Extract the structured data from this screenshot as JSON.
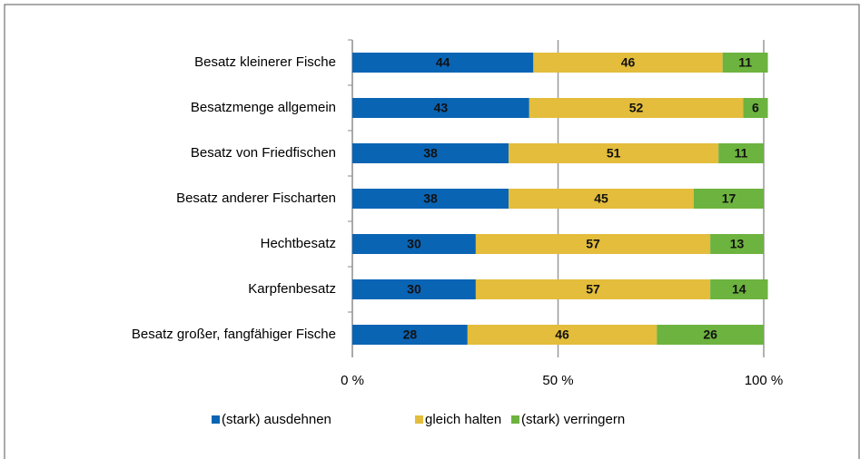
{
  "chart_data": {
    "type": "stacked_barh",
    "categories": [
      "Besatz kleinerer Fische",
      "Besatzmenge allgemein",
      "Besatz von Friedfischen",
      "Besatz anderer Fischarten",
      "Hechtbesatz",
      "Karpfenbesatz",
      "Besatz großer, fangfähiger Fische"
    ],
    "series": [
      {
        "name": "(stark) ausdehnen",
        "color": "#0a64b4",
        "values": [
          44,
          43,
          38,
          38,
          30,
          30,
          28
        ]
      },
      {
        "name": "gleich halten",
        "color": "#e3bd3b",
        "values": [
          46,
          52,
          51,
          45,
          57,
          57,
          46
        ]
      },
      {
        "name": "(stark) verringern",
        "color": "#6db33f",
        "values": [
          11,
          6,
          11,
          17,
          13,
          14,
          26
        ]
      }
    ],
    "xlim": [
      0,
      100
    ],
    "xticks": [
      {
        "value": 0,
        "label": "0 %"
      },
      {
        "value": 50,
        "label": "50 %"
      },
      {
        "value": 100,
        "label": "100 %"
      }
    ],
    "grid": true,
    "legend": "bottom"
  }
}
